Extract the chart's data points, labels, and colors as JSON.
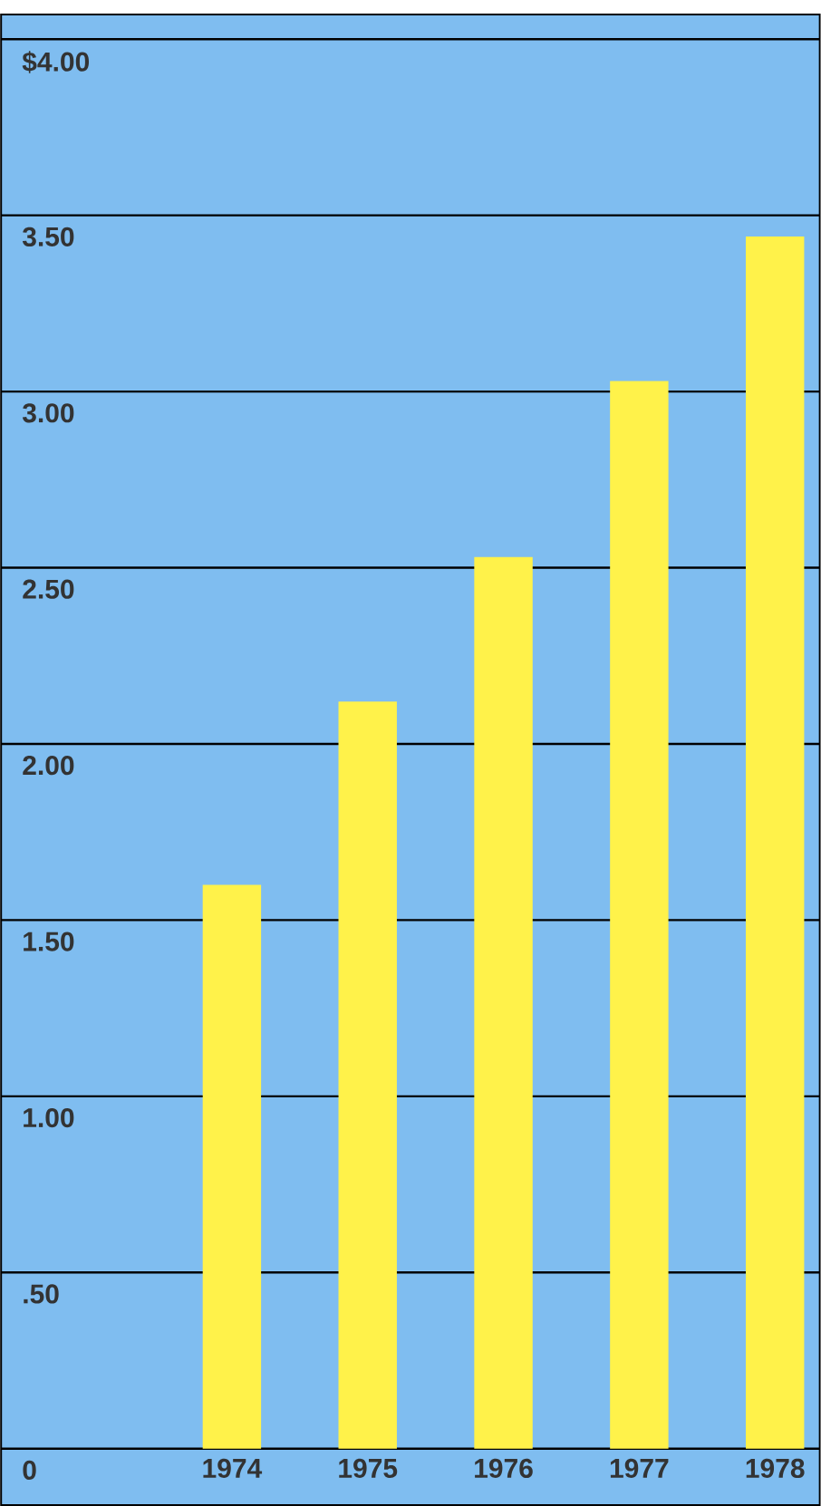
{
  "chart_data": {
    "type": "bar",
    "categories": [
      "1974",
      "1975",
      "1976",
      "1977",
      "1978"
    ],
    "values": [
      1.6,
      2.12,
      2.53,
      3.03,
      3.44
    ],
    "color": "#fff24a",
    "ylim": [
      -0.16,
      4.07
    ],
    "yticks": [
      {
        "value": 4,
        "label": "$4.00"
      },
      {
        "value": 3.5,
        "label": "3.50"
      },
      {
        "value": 3,
        "label": "3.00"
      },
      {
        "value": 2.5,
        "label": "2.50"
      },
      {
        "value": 2,
        "label": "2.00"
      },
      {
        "value": 1.5,
        "label": "1.50"
      },
      {
        "value": 1,
        "label": "1.00"
      },
      {
        "value": 0.5,
        "label": ".50"
      },
      0
    ],
    "grid": "y"
  }
}
